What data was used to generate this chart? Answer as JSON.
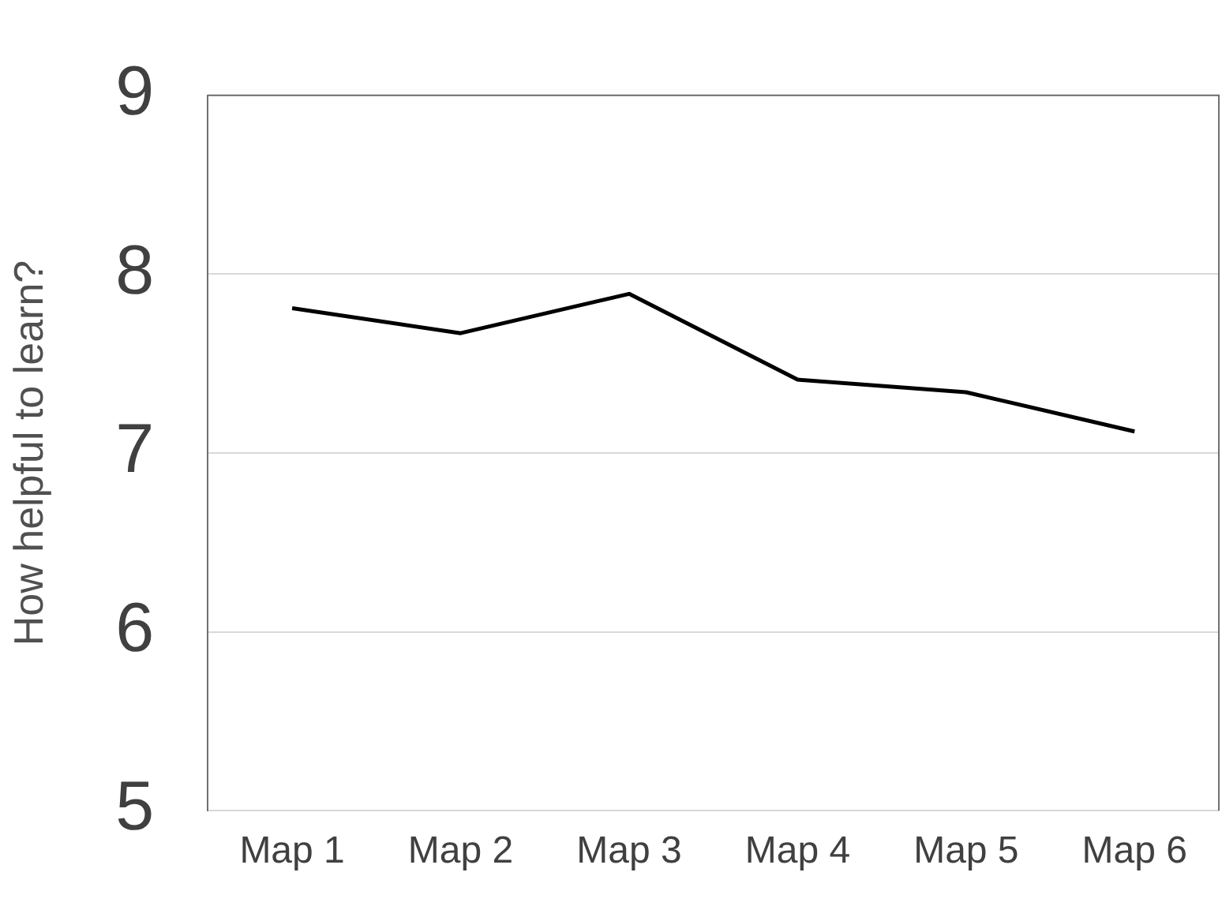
{
  "chart_data": {
    "type": "line",
    "ylabel": "How helpful to learn?",
    "categories": [
      "Map 1",
      "Map 2",
      "Map 3",
      "Map 4",
      "Map 5",
      "Map 6"
    ],
    "series": [
      {
        "color": "#000000",
        "values": [
          7.81,
          7.67,
          7.89,
          7.41,
          7.34,
          7.12
        ]
      }
    ],
    "ylim": [
      5,
      9
    ],
    "yticks": [
      5,
      6,
      7,
      8,
      9
    ],
    "grid": "y",
    "legend": false,
    "marker": "none",
    "line_style": "solid"
  }
}
